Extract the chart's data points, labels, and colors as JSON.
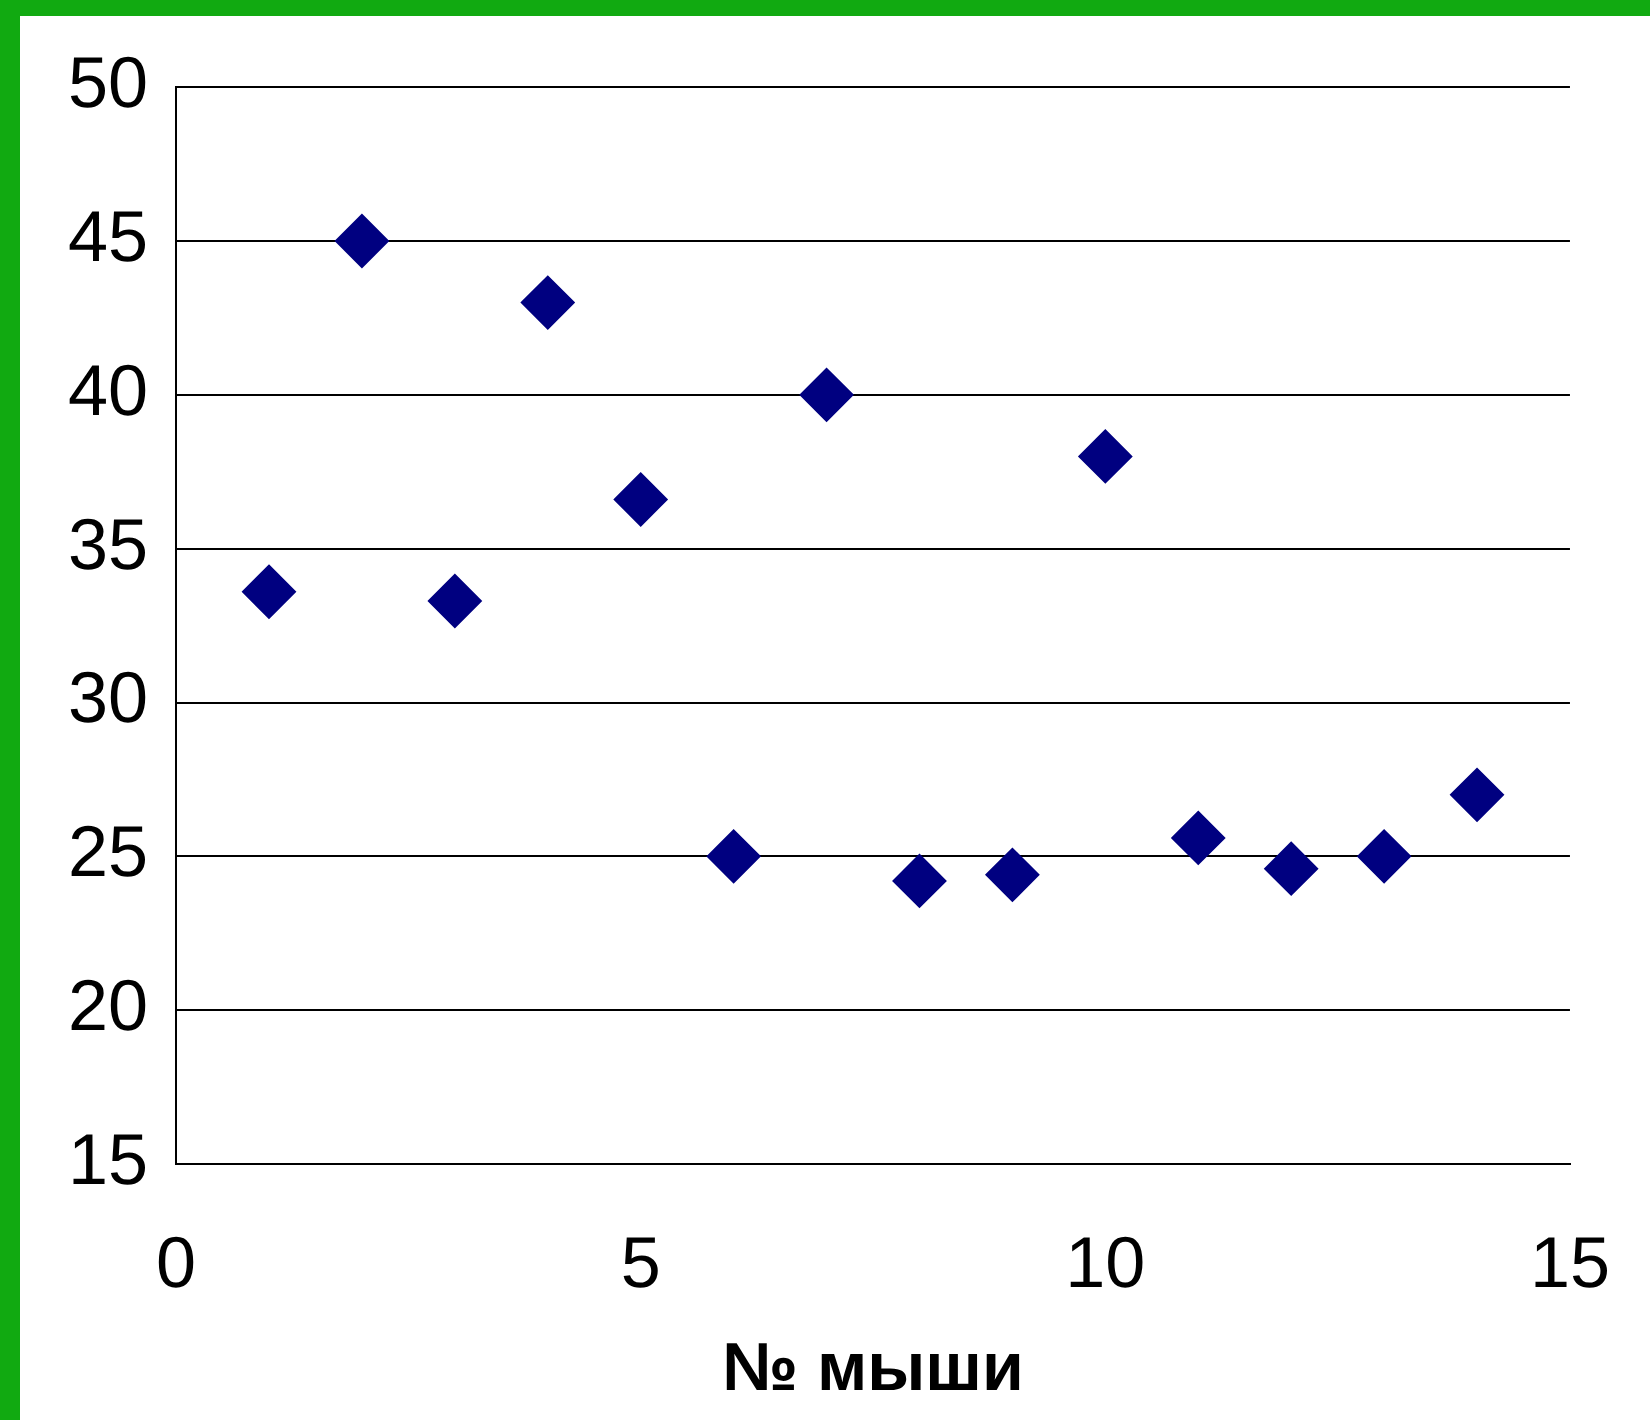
{
  "chart_data": {
    "type": "scatter",
    "xlabel": "№ мыши",
    "x": [
      1,
      2,
      3,
      4,
      5,
      6,
      7,
      8,
      9,
      10,
      11,
      12,
      13,
      14
    ],
    "series": [
      {
        "color": "#000080",
        "values": [
          33.6,
          45,
          33.3,
          43,
          36.6,
          25,
          40,
          24.2,
          24.4,
          38,
          25.6,
          24.6,
          25,
          27
        ]
      }
    ],
    "xlim": [
      0,
      15
    ],
    "xticks": [
      0,
      5,
      10,
      15
    ],
    "ylim": [
      15,
      50
    ],
    "yticks": [
      15,
      20,
      25,
      30,
      35,
      40,
      45,
      50
    ],
    "grid": "y",
    "marker": "diamond",
    "legend": false
  }
}
